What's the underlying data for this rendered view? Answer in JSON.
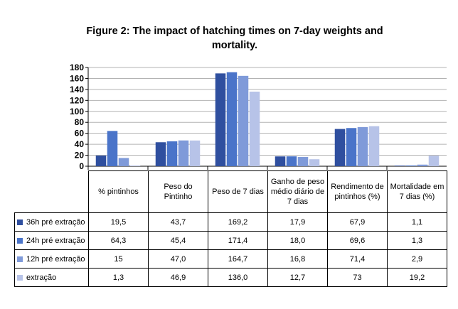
{
  "chart_data": {
    "type": "bar",
    "title": "Figure 2: The impact of hatching times on 7-day weights and mortality.",
    "categories": [
      "% pintinhos",
      "Peso do Pintinho",
      "Peso de 7 dias",
      "Ganho de peso médio diário de 7 dias",
      "Rendimento de pintinhos (%)",
      "Mortalidade em 7 dias (%)"
    ],
    "series": [
      {
        "name": "36h pré extração",
        "color": "#2f4f9f",
        "values": [
          19.5,
          43.7,
          169.2,
          17.9,
          67.9,
          1.1
        ],
        "labels": [
          "19,5",
          "43,7",
          "169,2",
          "17,9",
          "67,9",
          "1,1"
        ]
      },
      {
        "name": "24h pré extração",
        "color": "#4a74c9",
        "values": [
          64.3,
          45.4,
          171.4,
          18.0,
          69.6,
          1.3
        ],
        "labels": [
          "64,3",
          "45,4",
          "171,4",
          "18,0",
          "69,6",
          "1,3"
        ]
      },
      {
        "name": "12h pré extração",
        "color": "#7f9ad9",
        "values": [
          15,
          47.0,
          164.7,
          16.8,
          71.4,
          2.9
        ],
        "labels": [
          "15",
          "47,0",
          "164,7",
          "16,8",
          "71,4",
          "2,9"
        ]
      },
      {
        "name": "extração",
        "color": "#b7c3e8",
        "values": [
          1.3,
          46.9,
          136.0,
          12.7,
          73,
          19.2
        ],
        "labels": [
          "1,3",
          "46,9",
          "136,0",
          "12,7",
          "73",
          "19,2"
        ]
      }
    ],
    "ylim": [
      0,
      180
    ],
    "yticks": [
      0,
      20,
      40,
      60,
      80,
      100,
      120,
      140,
      160,
      180
    ],
    "grid": true,
    "legend": "data table"
  }
}
